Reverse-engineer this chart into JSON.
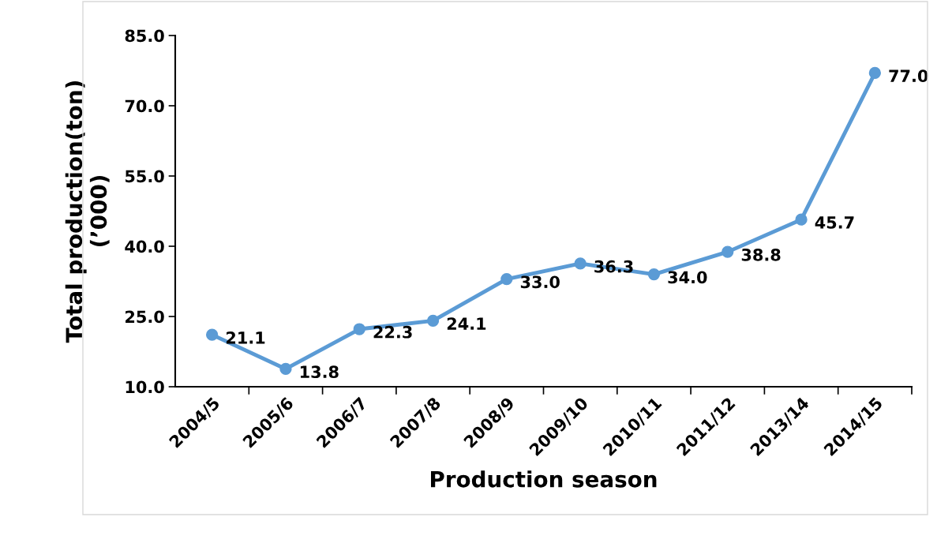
{
  "chart_data": {
    "type": "line",
    "xlabel": "Production season",
    "ylabel": "Total production(ton)\n(’000)",
    "categories": [
      "2004/5",
      "2005/6",
      "2006/7",
      "2007/8",
      "2008/9",
      "2009/10",
      "2010/11",
      "2011/12",
      "2013/14",
      "2014/15"
    ],
    "series": [
      {
        "color": "#5b9bd5",
        "values": [
          21.1,
          13.8,
          22.3,
          24.1,
          33.0,
          36.3,
          34.0,
          38.8,
          45.7,
          77.0
        ],
        "value_labels": [
          "21.1",
          "13.8",
          "22.3",
          "24.1",
          "33.0",
          "36.3",
          "34.0",
          "38.8",
          "45.7",
          "77.0"
        ]
      }
    ],
    "ylim": [
      10,
      85
    ],
    "yticks": [
      {
        "value": 10,
        "label": "10.0"
      },
      {
        "value": 25,
        "label": "25.0"
      },
      {
        "value": 40,
        "label": "40.0"
      },
      {
        "value": 55,
        "label": "55.0"
      },
      {
        "value": 70,
        "label": "70.0"
      },
      {
        "value": 85,
        "label": "85.0"
      }
    ],
    "grid": false,
    "marker": "circle",
    "line_style": "solid"
  }
}
